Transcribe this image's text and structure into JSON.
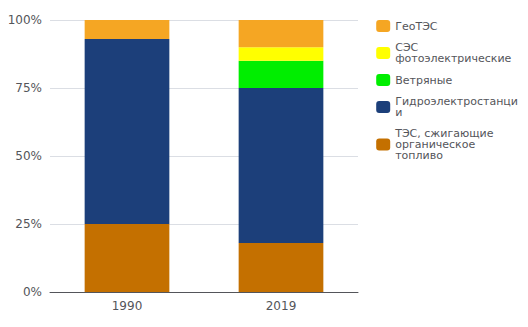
{
  "chart_data": {
    "type": "bar",
    "stacked": true,
    "categories": [
      "1990",
      "2019"
    ],
    "series": [
      {
        "name": "ТЭС, сжигающие\nорганическое\nтопливо",
        "values": [
          25,
          18
        ],
        "color": "#c47000"
      },
      {
        "name": "Гидроэлектростанци\nи",
        "values": [
          68,
          57
        ],
        "color": "#1c3f7a"
      },
      {
        "name": "Ветряные",
        "values": [
          0,
          10
        ],
        "color": "#00ee00"
      },
      {
        "name": "СЭС\nфотоэлектрические",
        "values": [
          0,
          5
        ],
        "color": "#ffff00"
      },
      {
        "name": "ГеоТЭС",
        "values": [
          7,
          10
        ],
        "color": "#f5a623"
      }
    ],
    "ylim": [
      0,
      100
    ],
    "yticks": [
      {
        "value": 0,
        "label": "0%"
      },
      {
        "value": 25,
        "label": "25%"
      },
      {
        "value": 50,
        "label": "50%"
      },
      {
        "value": 75,
        "label": "75%"
      },
      {
        "value": 100,
        "label": "100%"
      }
    ],
    "grid": true,
    "legend": "right"
  }
}
